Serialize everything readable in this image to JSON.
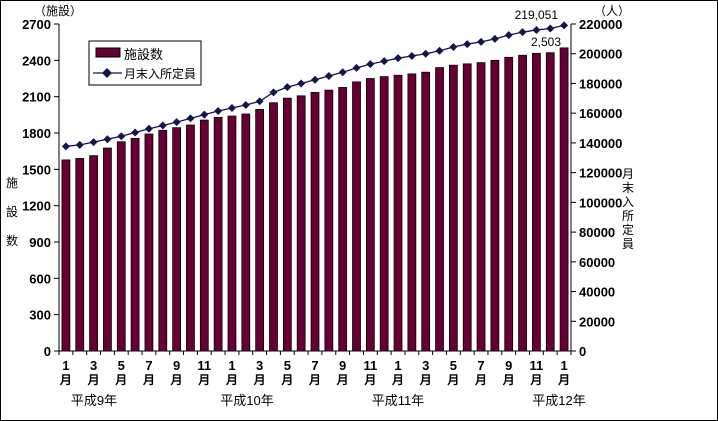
{
  "chart_data": {
    "type": "bar",
    "title": "",
    "categories": [
      "1月",
      "2月",
      "3月",
      "4月",
      "5月",
      "6月",
      "7月",
      "8月",
      "9月",
      "10月",
      "11月",
      "12月",
      "1月",
      "2月",
      "3月",
      "4月",
      "5月",
      "6月",
      "7月",
      "8月",
      "9月",
      "10月",
      "11月",
      "12月",
      "1月",
      "2月",
      "3月",
      "4月",
      "5月",
      "6月",
      "7月",
      "8月",
      "9月",
      "10月",
      "11月",
      "12月",
      "1月"
    ],
    "year_groups": [
      {
        "label": "平成9年",
        "span": 12
      },
      {
        "label": "平成10年",
        "span": 12
      },
      {
        "label": "平成11年",
        "span": 12
      },
      {
        "label": "平成12年",
        "span": 1
      }
    ],
    "series": [
      {
        "name": "施設数",
        "type": "bar",
        "axis": "left",
        "color": "#660033",
        "values": [
          1578,
          1590,
          1613,
          1676,
          1728,
          1756,
          1792,
          1822,
          1844,
          1866,
          1907,
          1929,
          1940,
          1957,
          1995,
          2050,
          2088,
          2107,
          2135,
          2154,
          2176,
          2222,
          2250,
          2266,
          2277,
          2288,
          2302,
          2340,
          2360,
          2371,
          2381,
          2400,
          2425,
          2442,
          2458,
          2463,
          2503
        ]
      },
      {
        "name": "月末入所定員",
        "type": "line",
        "axis": "right",
        "color": "#15154d",
        "values": [
          137700,
          138700,
          140500,
          142500,
          144500,
          147000,
          149500,
          151700,
          154000,
          156500,
          159000,
          161500,
          163500,
          165500,
          168000,
          174000,
          177500,
          180000,
          182500,
          185000,
          187500,
          190500,
          193000,
          195000,
          197000,
          198500,
          200000,
          202000,
          204500,
          206500,
          208000,
          210000,
          212500,
          214500,
          216000,
          217000,
          219051
        ]
      }
    ],
    "left_axis": {
      "label": "施設数",
      "unit": "（施設）",
      "min": 0,
      "max": 2700,
      "step": 300,
      "ticks": [
        0,
        300,
        600,
        900,
        1200,
        1500,
        1800,
        2100,
        2400,
        2700
      ]
    },
    "right_axis": {
      "label": "月末入所定員",
      "unit": "（人）",
      "min": 0,
      "max": 220000,
      "step": 20000,
      "ticks": [
        0,
        20000,
        40000,
        60000,
        80000,
        100000,
        120000,
        140000,
        160000,
        180000,
        200000,
        220000
      ]
    },
    "annotations": [
      {
        "text": "219,051",
        "target": "line-last"
      },
      {
        "text": "2,503",
        "target": "bar-last"
      }
    ],
    "legend": {
      "position": "top-left-inside",
      "border": "#000000",
      "background": "#ffffff"
    },
    "grid": "off",
    "background": "#ffffff"
  }
}
